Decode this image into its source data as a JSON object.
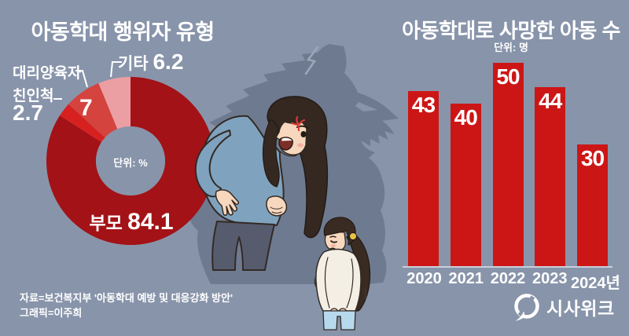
{
  "page": {
    "background_color": "#8894aa",
    "accent_red": "#cc1616",
    "text_color": "#ffffff"
  },
  "chart_data": [
    {
      "type": "pie",
      "donut": true,
      "title": "아동학대 행위자 유형",
      "unit": "단위: %",
      "categories": [
        "부모",
        "친인척",
        "대리양육자",
        "기타"
      ],
      "values": [
        84.1,
        2.7,
        7,
        6.2
      ],
      "colors": [
        "#a31216",
        "#d62120",
        "#d5433f",
        "#ec9fa3"
      ],
      "start_angle_deg": 0,
      "direction": "clockwise",
      "legend_position": "outside-labels"
    },
    {
      "type": "bar",
      "title": "아동학대로 사망한 아동 수",
      "unit": "단위: 명",
      "categories": [
        "2020",
        "2021",
        "2022",
        "2023",
        "2024년"
      ],
      "values": [
        43,
        40,
        50,
        44,
        30
      ],
      "bar_color": "#cc1616",
      "value_labels": "inside-top",
      "ylim": [
        0,
        50
      ],
      "grid": false
    }
  ],
  "source": {
    "line1": "자료=보건복지부 '아동학대 예방 및 대응강화 방안'",
    "line2": "그래픽=이주희"
  },
  "logo": {
    "text": "시사위크",
    "icon": "sisaweek-s-emblem"
  },
  "illustration": {
    "description": "Angry mother in blue sweater leaning forward scolding a small girl who bows her head; a dark wolf-shaped shadow looms behind the mother."
  }
}
